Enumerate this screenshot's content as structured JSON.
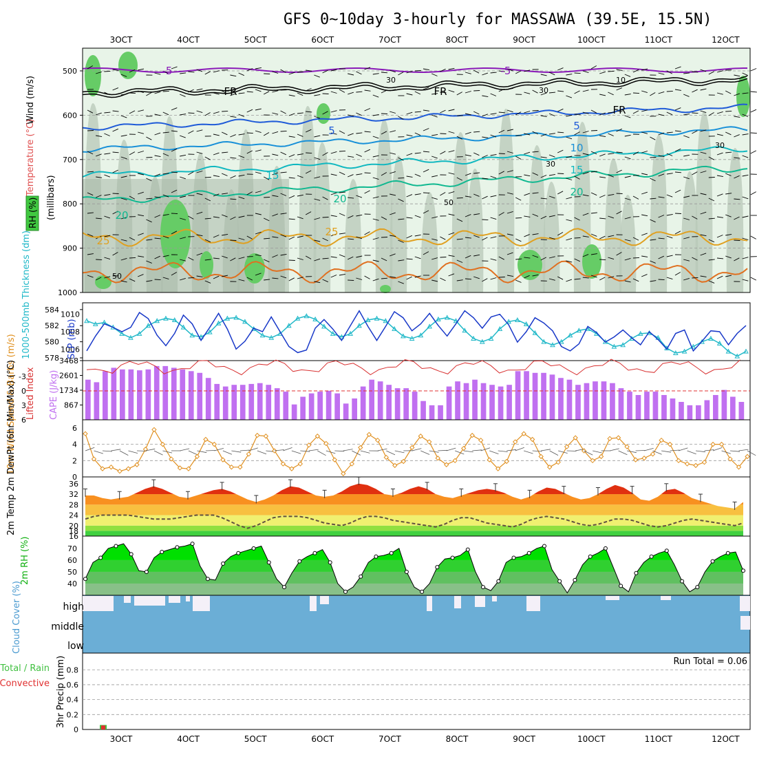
{
  "title": "GFS 0~10day 3-hourly for MASSAWA (39.5E, 15.5N)",
  "x_axis": {
    "labels": [
      "3OCT",
      "4OCT",
      "5OCT",
      "6OCT",
      "7OCT",
      "8OCT",
      "9OCT",
      "10OCT",
      "11OCT",
      "12OCT"
    ]
  },
  "colors": {
    "rh": "#40c840",
    "temp": "#e05050",
    "wind": "#000000",
    "tc1": "#8a2be2",
    "tc2": "#1e5ad8",
    "thick": "#20b8c8",
    "slp": "#1838c8",
    "cape": "#c070f0",
    "li": "#d83030",
    "wind10": "#e09020"
  },
  "chart_data": [
    {
      "panel": "upper-air",
      "type": "contour",
      "ylabel": "(millibars)",
      "yticks": [
        "500",
        "600",
        "700",
        "800",
        "900",
        "1000"
      ],
      "side_labels": {
        "rh": "RH (%)",
        "temp": "Temperature (°C)",
        "wind": "Wind (m/s)"
      },
      "rh_labels": [
        "30",
        "30",
        "10",
        "30",
        "30",
        "50",
        "50"
      ],
      "freezing_label": "FR",
      "contours": [
        {
          "value": -5,
          "labels": [
            "-5",
            "-5"
          ]
        },
        {
          "value": 0,
          "labels": [
            "FR",
            "FR",
            "FR"
          ]
        },
        {
          "value": 5,
          "labels": [
            "5",
            "5"
          ]
        },
        {
          "value": 10,
          "labels": [
            "10"
          ]
        },
        {
          "value": 15,
          "labels": [
            "15",
            "15"
          ]
        },
        {
          "value": 20,
          "labels": [
            "20",
            "20",
            "20"
          ]
        },
        {
          "value": 25,
          "labels": [
            "25",
            "25"
          ]
        }
      ]
    },
    {
      "panel": "thickness-slp",
      "type": "line",
      "ylabel_left": "1000-500mb Thickness (dm)",
      "ylabel_right": "SLP (mb)",
      "yticks_left": [
        "584",
        "582",
        "580",
        "578"
      ],
      "yticks_right": [
        "1010",
        "1008",
        "1006"
      ],
      "thickness": [
        582.6,
        582.2,
        582.4,
        581.8,
        581.0,
        580.5,
        581.0,
        582.0,
        582.6,
        582.9,
        582.7,
        581.8,
        580.8,
        580.6,
        581.2,
        582.3,
        582.9,
        583.0,
        582.5,
        581.6,
        580.8,
        580.5,
        581.0,
        582.0,
        582.9,
        583.2,
        582.8,
        581.9,
        581.0,
        580.6,
        581.0,
        582.0,
        582.7,
        582.9,
        582.6,
        581.6,
        580.7,
        580.4,
        580.8,
        581.9,
        582.8,
        583.0,
        582.6,
        581.4,
        580.4,
        580.0,
        580.4,
        581.6,
        582.5,
        582.7,
        582.2,
        581.1,
        580.0,
        579.6,
        580.0,
        580.8,
        581.4,
        581.6,
        581.0,
        580.0,
        579.4,
        579.6,
        580.4,
        581.0,
        581.1,
        580.5,
        579.2,
        578.6,
        578.8,
        579.4,
        580.0,
        580.4,
        579.8,
        578.8,
        578.2,
        578.8
      ],
      "slp": [
        1005.8,
        1007.5,
        1008.9,
        1008.5,
        1008.0,
        1008.5,
        1010.2,
        1009.5,
        1007.6,
        1006.4,
        1007.8,
        1009.9,
        1008.9,
        1007.0,
        1008.5,
        1010.1,
        1008.3,
        1006.0,
        1006.9,
        1008.4,
        1008.0,
        1009.7,
        1008.0,
        1006.3,
        1005.6,
        1005.9,
        1008.4,
        1009.4,
        1008.3,
        1007.0,
        1008.7,
        1010.4,
        1008.6,
        1007.0,
        1008.6,
        1010.3,
        1009.6,
        1008.1,
        1008.9,
        1010.1,
        1008.7,
        1007.5,
        1008.9,
        1010.4,
        1009.6,
        1008.4,
        1009.7,
        1010.0,
        1008.8,
        1006.8,
        1008.0,
        1009.6,
        1009.0,
        1008.1,
        1006.3,
        1005.8,
        1006.6,
        1008.6,
        1007.9,
        1006.8,
        1007.4,
        1008.2,
        1007.3,
        1006.5,
        1008.0,
        1007.1,
        1006.0,
        1007.8,
        1008.2,
        1005.8,
        1006.9,
        1008.1,
        1008.0,
        1006.5,
        1007.8,
        1008.7
      ]
    },
    {
      "panel": "cape-li",
      "type": "bar",
      "ylabel_left": "Lifted Index",
      "ylabel_right": "CAPE (J/kg)",
      "yticks_left": [
        "-3",
        "0",
        "3",
        "6"
      ],
      "yticks_right": [
        "3468",
        "2601",
        "1734",
        "867"
      ],
      "cape": [
        2350,
        2200,
        2850,
        3050,
        2950,
        2950,
        2900,
        2950,
        3150,
        3150,
        3050,
        2950,
        2850,
        2750,
        2450,
        2100,
        1950,
        2050,
        2050,
        2100,
        2150,
        2050,
        1850,
        1650,
        900,
        1350,
        1550,
        1650,
        1700,
        1550,
        950,
        1250,
        1950,
        2350,
        2250,
        2050,
        1850,
        1850,
        1650,
        1100,
        850,
        850,
        1950,
        2250,
        2150,
        2350,
        2150,
        2050,
        1950,
        2050,
        2850,
        2850,
        2750,
        2750,
        2650,
        2450,
        2350,
        2050,
        2150,
        2250,
        2250,
        2150,
        1850,
        1650,
        1450,
        1650,
        1650,
        1450,
        1250,
        1050,
        850,
        850,
        1150,
        1450,
        1750,
        1350,
        1050
      ]
    },
    {
      "panel": "wind10m",
      "type": "line",
      "ylabel": "10m Wind Speed & Barbs (m/s)",
      "yticks": [
        "6",
        "4",
        "2",
        "0"
      ],
      "values": [
        5.3,
        2.2,
        1.0,
        1.2,
        0.7,
        1.0,
        1.5,
        3.4,
        5.8,
        4.0,
        2.2,
        1.1,
        1.0,
        2.5,
        4.6,
        4.0,
        2.1,
        1.2,
        1.2,
        2.8,
        5.1,
        5.0,
        3.2,
        1.6,
        1.0,
        1.6,
        3.9,
        5.0,
        4.1,
        2.1,
        0.4,
        1.6,
        3.6,
        5.2,
        4.5,
        2.4,
        1.4,
        1.9,
        3.6,
        5.0,
        4.3,
        2.3,
        1.5,
        2.0,
        3.5,
        5.1,
        4.5,
        2.1,
        1.0,
        1.9,
        4.3,
        5.3,
        4.6,
        2.5,
        1.2,
        1.8,
        3.7,
        4.8,
        3.2,
        2.0,
        2.5,
        4.7,
        4.8,
        3.7,
        2.1,
        2.3,
        2.8,
        4.5,
        4.0,
        2.0,
        1.6,
        1.4,
        1.8,
        4.0,
        4.0,
        2.2,
        1.2,
        2.5
      ]
    },
    {
      "panel": "temp2m",
      "type": "area",
      "ylabel": "2m Temp 2m DewPt (6hr Min/Max) (°C)",
      "yticks": [
        "36",
        "32",
        "28",
        "24",
        "20",
        "18",
        "16"
      ],
      "temp": [
        31.5,
        31.5,
        30.5,
        30.0,
        30.5,
        31.0,
        32.5,
        34.0,
        35.0,
        34.0,
        32.5,
        31.0,
        30.5,
        31.5,
        32.5,
        33.5,
        34.0,
        33.0,
        31.5,
        30.0,
        29.0,
        30.0,
        31.5,
        33.5,
        35.0,
        34.5,
        33.0,
        31.5,
        31.0,
        31.5,
        33.0,
        35.0,
        36.0,
        35.5,
        34.0,
        32.0,
        31.5,
        32.5,
        34.0,
        35.0,
        34.0,
        32.0,
        31.0,
        30.5,
        31.5,
        32.5,
        33.5,
        34.0,
        33.5,
        32.5,
        31.0,
        30.0,
        31.0,
        33.0,
        34.5,
        34.0,
        32.5,
        31.0,
        30.0,
        30.5,
        32.0,
        34.0,
        35.5,
        34.5,
        32.5,
        30.0,
        29.5,
        31.0,
        33.5,
        34.0,
        32.5,
        30.5,
        29.5,
        28.5,
        27.5,
        27.0,
        26.5,
        29.0
      ],
      "dewpoint": [
        22.5,
        23.5,
        24.0,
        24.0,
        24.0,
        24.0,
        23.5,
        23.0,
        22.5,
        22.5,
        22.5,
        23.0,
        23.5,
        24.0,
        24.0,
        24.0,
        23.0,
        21.5,
        20.0,
        19.0,
        20.0,
        21.5,
        23.0,
        23.5,
        23.5,
        23.5,
        23.0,
        22.0,
        21.0,
        20.5,
        20.0,
        21.0,
        22.5,
        23.5,
        23.5,
        23.0,
        22.0,
        21.5,
        21.0,
        20.5,
        20.0,
        19.5,
        20.5,
        22.0,
        23.0,
        23.0,
        22.0,
        21.0,
        20.5,
        20.0,
        19.5,
        20.5,
        22.0,
        23.0,
        23.5,
        23.0,
        22.5,
        21.5,
        20.5,
        20.0,
        20.5,
        21.5,
        22.5,
        22.5,
        22.0,
        21.0,
        20.0,
        19.5,
        20.0,
        21.0,
        22.0,
        22.5,
        22.0,
        21.5,
        21.0,
        20.5,
        20.0,
        21.0
      ]
    },
    {
      "panel": "rh2m",
      "type": "area",
      "ylabel": "2m RH (%)",
      "yticks": [
        "70",
        "60",
        "50",
        "40"
      ],
      "values": [
        44,
        58,
        62,
        70,
        72,
        74,
        65,
        51,
        50,
        62,
        67,
        69,
        71,
        72,
        74,
        55,
        44,
        43,
        57,
        63,
        66,
        68,
        70,
        72,
        58,
        44,
        37,
        49,
        59,
        63,
        66,
        69,
        58,
        40,
        33,
        37,
        46,
        58,
        63,
        64,
        66,
        70,
        50,
        37,
        33,
        40,
        54,
        61,
        62,
        64,
        69,
        50,
        37,
        34,
        42,
        58,
        62,
        63,
        66,
        70,
        72,
        52,
        42,
        32,
        43,
        56,
        63,
        66,
        70,
        54,
        38,
        33,
        49,
        58,
        63,
        66,
        68,
        56,
        42,
        33,
        37,
        50,
        59,
        63,
        66,
        67,
        51
      ]
    },
    {
      "panel": "cloud",
      "type": "area",
      "ylabel": "Cloud Cover (%)",
      "layers": [
        "high",
        "middle",
        "low"
      ]
    },
    {
      "panel": "precip",
      "type": "bar",
      "ylabel": "3hr Precip (mm)",
      "side_label": "Total / Rain",
      "side_label2": "Convective",
      "yticks": [
        "0.8",
        "0.6",
        "0.4",
        "0.2",
        "0"
      ],
      "run_total": "Run Total = 0.06",
      "values": [
        0,
        0,
        0.06,
        0,
        0,
        0,
        0,
        0,
        0,
        0
      ]
    }
  ]
}
